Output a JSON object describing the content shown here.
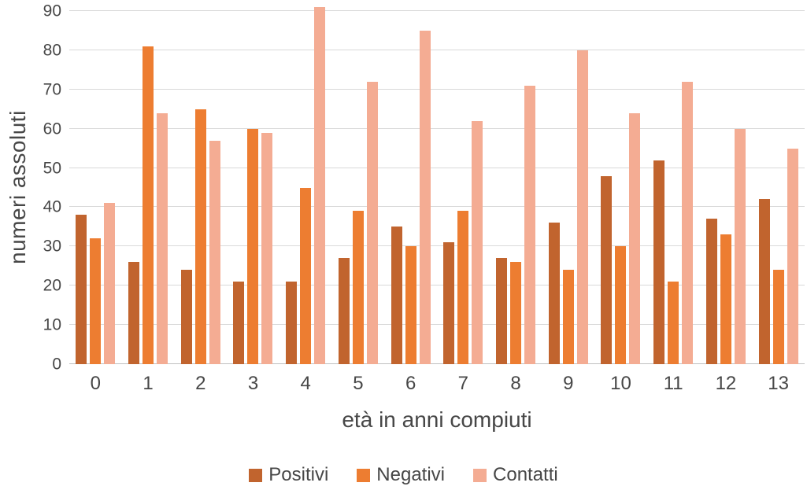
{
  "chart_data": {
    "type": "bar",
    "title": "",
    "xlabel": "età in anni compiuti",
    "ylabel": "numeri assoluti",
    "categories": [
      "0",
      "1",
      "2",
      "3",
      "4",
      "5",
      "6",
      "7",
      "8",
      "9",
      "10",
      "11",
      "12",
      "13"
    ],
    "series": [
      {
        "name": "Positivi",
        "color": "#C1642E",
        "values": [
          38,
          26,
          24,
          21,
          21,
          27,
          35,
          31,
          27,
          36,
          48,
          52,
          37,
          42
        ]
      },
      {
        "name": "Negativi",
        "color": "#ED7D31",
        "values": [
          32,
          81,
          65,
          60,
          45,
          39,
          30,
          39,
          26,
          24,
          30,
          21,
          33,
          24
        ]
      },
      {
        "name": "Contatti",
        "color": "#F4AC93",
        "values": [
          41,
          64,
          57,
          59,
          91,
          72,
          85,
          62,
          71,
          80,
          64,
          72,
          60,
          55
        ]
      }
    ],
    "ylim": [
      0,
      90
    ],
    "ytick_step": 10,
    "yticks": [
      0,
      10,
      20,
      30,
      40,
      50,
      60,
      70,
      80,
      90
    ],
    "grid": "horizontal",
    "legend_position": "bottom",
    "gridline_color": "#D9D9D9",
    "axis_line_color": "#BFBFBF",
    "text_color": "#474747"
  }
}
